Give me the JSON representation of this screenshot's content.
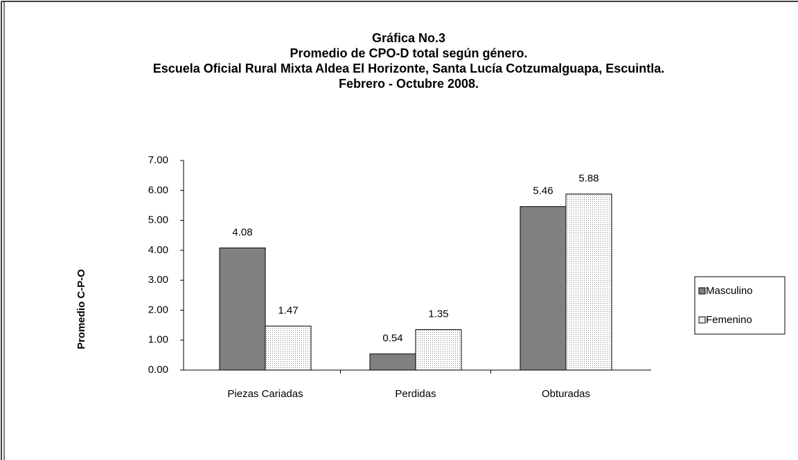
{
  "chart_data": {
    "type": "bar",
    "title": [
      "Gráfica No.3",
      "Promedio de CPO-D total según género.",
      "Escuela Oficial Rural Mixta Aldea El Horizonte, Santa Lucía Cotzumalguapa, Escuintla.",
      "Febrero - Octubre 2008."
    ],
    "y_label": "Promedio C-P-O",
    "categories": [
      "Piezas Cariadas",
      "Perdidas",
      "Obturadas"
    ],
    "series": [
      {
        "name": "Masculino",
        "color": "#808080",
        "values": [
          4.08,
          0.54,
          5.46
        ]
      },
      {
        "name": "Femenino",
        "color": "#ffffff",
        "values": [
          1.47,
          1.35,
          5.88
        ]
      }
    ],
    "ylim": [
      0,
      7
    ],
    "yticks": [
      {
        "value": 0,
        "label": "0.00"
      },
      {
        "value": 1,
        "label": "1.00"
      },
      {
        "value": 2,
        "label": "2.00"
      },
      {
        "value": 3,
        "label": "3.00"
      },
      {
        "value": 4,
        "label": "4.00"
      },
      {
        "value": 5,
        "label": "5.00"
      },
      {
        "value": 6,
        "label": "6.00"
      },
      {
        "value": 7,
        "label": "7.00"
      }
    ],
    "legend": "right"
  }
}
